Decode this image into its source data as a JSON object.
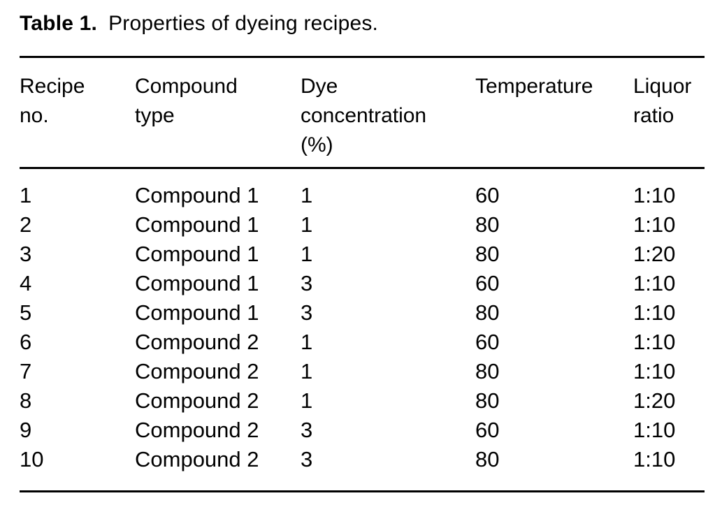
{
  "page": {
    "background_color": "#ffffff",
    "text_color": "#000000",
    "rule_color": "#000000"
  },
  "table": {
    "title": {
      "label": "Table 1.",
      "caption": "Properties of dyeing recipes."
    },
    "headers": [
      "Recipe\nno.",
      "Compound\ntype",
      "Dye\nconcentration\n(%)",
      "Temperature",
      "Liquor\nratio"
    ],
    "rows": [
      [
        "1",
        "Compound 1",
        "1",
        "60",
        "1:10"
      ],
      [
        "2",
        "Compound 1",
        "1",
        "80",
        "1:10"
      ],
      [
        "3",
        "Compound 1",
        "1",
        "80",
        "1:20"
      ],
      [
        "4",
        "Compound 1",
        "3",
        "60",
        "1:10"
      ],
      [
        "5",
        "Compound 1",
        "3",
        "80",
        "1:10"
      ],
      [
        "6",
        "Compound 2",
        "1",
        "60",
        "1:10"
      ],
      [
        "7",
        "Compound 2",
        "1",
        "80",
        "1:10"
      ],
      [
        "8",
        "Compound 2",
        "1",
        "80",
        "1:20"
      ],
      [
        "9",
        "Compound 2",
        "3",
        "60",
        "1:10"
      ],
      [
        "10",
        "Compound 2",
        "3",
        "80",
        "1:10"
      ]
    ]
  }
}
